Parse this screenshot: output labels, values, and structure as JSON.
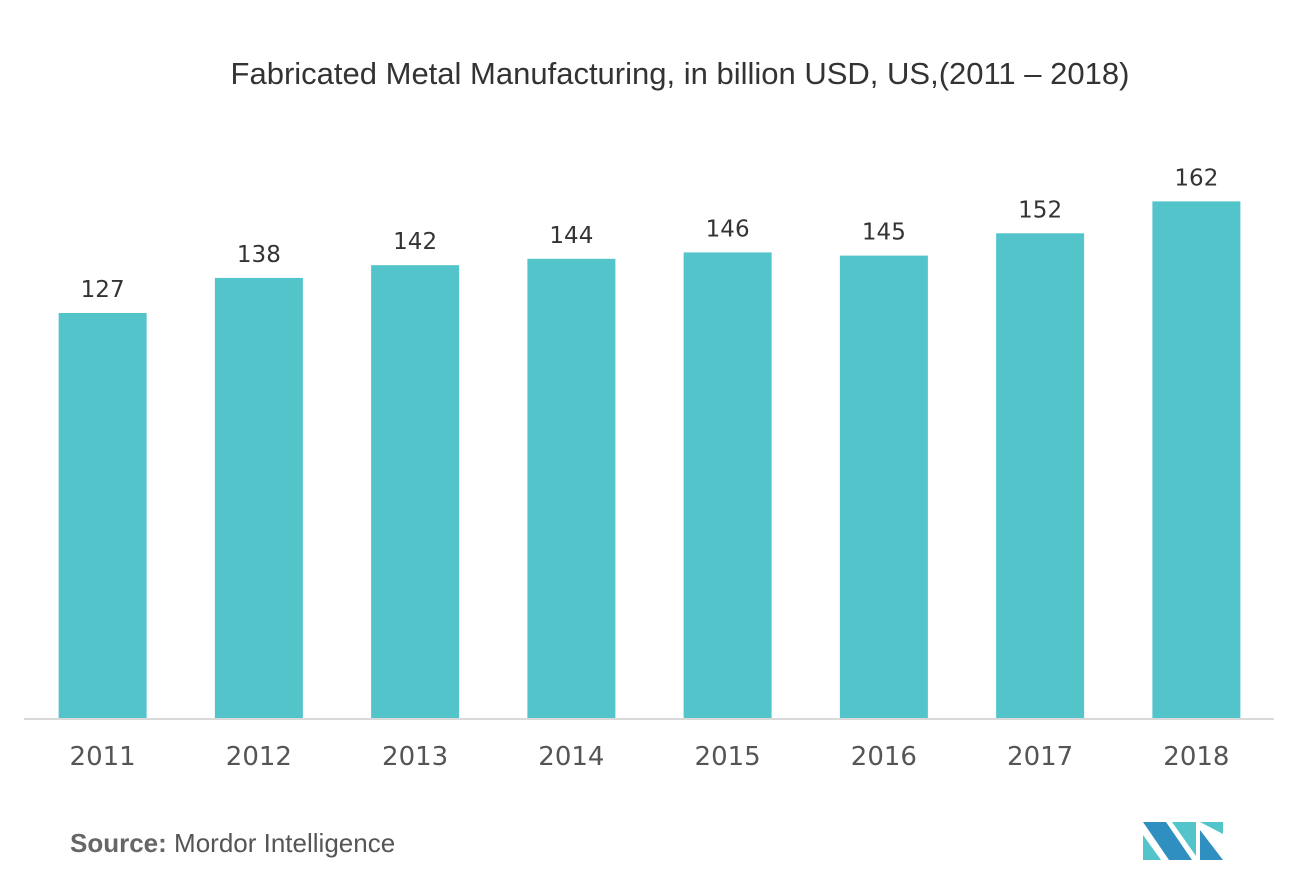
{
  "chart_data": {
    "type": "bar",
    "title": "Fabricated Metal Manufacturing, in billion USD, US,(2011 – 2018)",
    "categories": [
      "2011",
      "2012",
      "2013",
      "2014",
      "2015",
      "2016",
      "2017",
      "2018"
    ],
    "values": [
      127,
      138,
      142,
      144,
      146,
      145,
      152,
      162
    ],
    "xlabel": "",
    "ylabel": "",
    "ylim": [
      0,
      180
    ],
    "grid": false,
    "bar_color": "#53c4c9",
    "data_labels": true
  },
  "source": {
    "label": "Source:",
    "text": "Mordor Intelligence"
  },
  "logo": {
    "colors": [
      "#2e8fc0",
      "#53c4c9"
    ]
  }
}
